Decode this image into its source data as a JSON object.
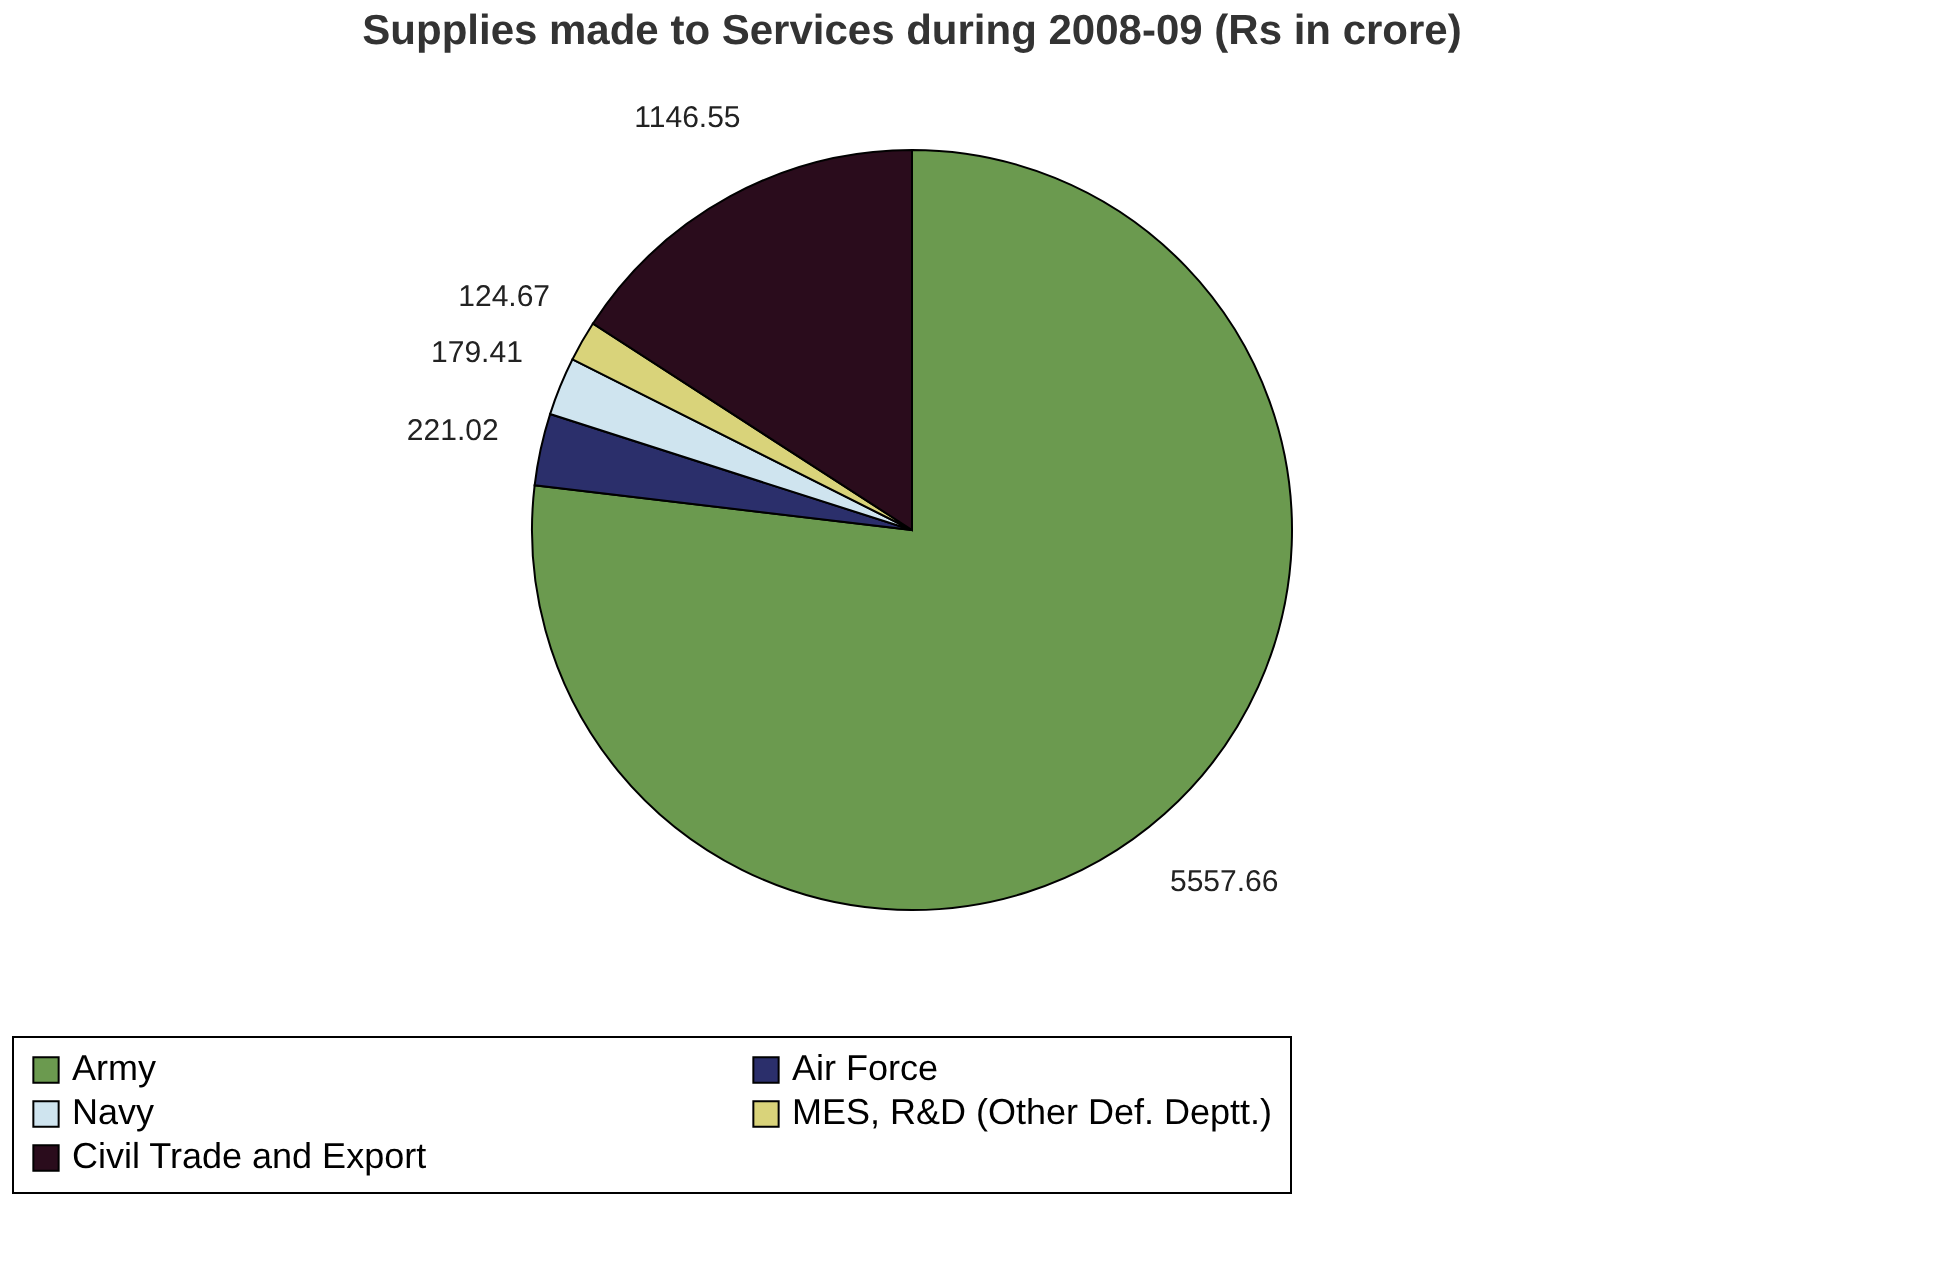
{
  "chart_data": {
    "type": "pie",
    "title": "Supplies made to Services during 2008-09 (Rs in crore)",
    "categories": [
      "Army",
      "Air Force",
      "Navy",
      "MES, R&D (Other Def. Deptt.)",
      "Civil Trade and Export"
    ],
    "values": [
      5557.66,
      221.02,
      179.41,
      124.67,
      1146.55
    ],
    "colors": [
      "#6b9a4f",
      "#2b2f6b",
      "#cfe4ef",
      "#d9d37a",
      "#2a0c1c"
    ],
    "data_labels": true,
    "legend": "bottom"
  }
}
